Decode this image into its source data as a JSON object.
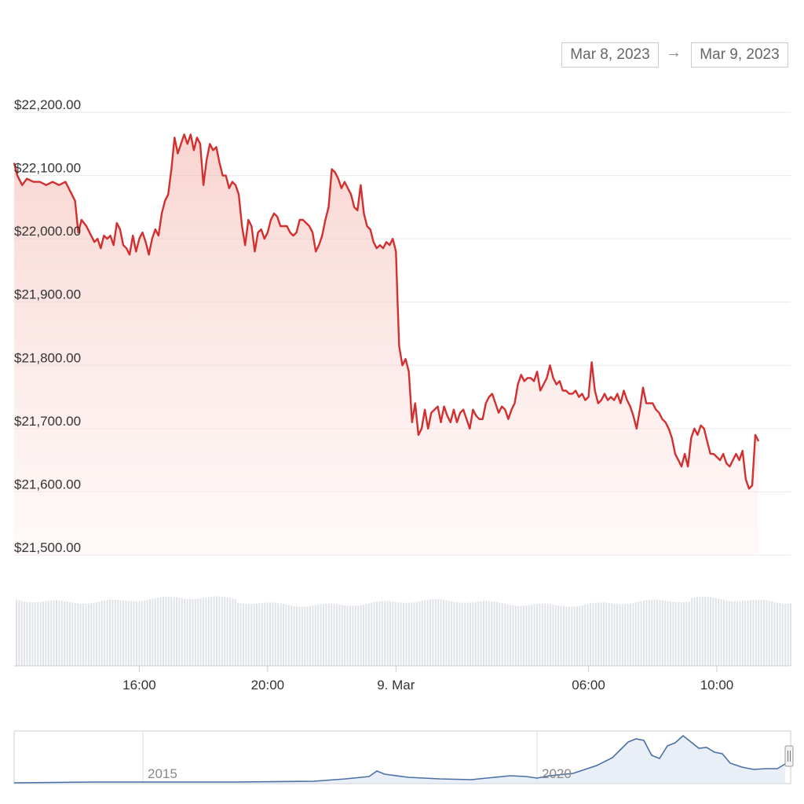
{
  "date_range": {
    "from": "Mar 8, 2023",
    "arrow": "→",
    "to": "Mar 9, 2023"
  },
  "colors": {
    "price_line": "#d32f2f",
    "area_fill": "#f8d7d3",
    "volume_bar": "#dfe3e8",
    "navigator_line": "#4a6fa5",
    "grid": "#e9e9e9"
  },
  "chart_data": {
    "type": "area",
    "y_tick_labels": [
      "$21,500.00",
      "$21,600.00",
      "$21,700.00",
      "$21,800.00",
      "$21,900.00",
      "$22,000.00",
      "$22,100.00",
      "$22,200.00"
    ],
    "y_tick_values": [
      21500,
      21600,
      21700,
      21800,
      21900,
      22000,
      22100,
      22200
    ],
    "ylim": [
      21500,
      22200
    ],
    "x_tick_labels": [
      "16:00",
      "20:00",
      "9. Mar",
      "06:00",
      "10:00"
    ],
    "x_tick_hours": [
      16,
      20,
      24,
      30,
      34
    ],
    "x_range_hours": [
      12.1,
      36.3
    ],
    "grid": true,
    "series": [
      {
        "points": [
          [
            12.1,
            22120
          ],
          [
            12.2,
            22100
          ],
          [
            12.35,
            22085
          ],
          [
            12.5,
            22095
          ],
          [
            12.7,
            22090
          ],
          [
            12.9,
            22090
          ],
          [
            13.1,
            22085
          ],
          [
            13.3,
            22090
          ],
          [
            13.5,
            22085
          ],
          [
            13.7,
            22090
          ],
          [
            13.8,
            22080
          ],
          [
            14.0,
            22060
          ],
          [
            14.1,
            22010
          ],
          [
            14.2,
            22030
          ],
          [
            14.35,
            22020
          ],
          [
            14.5,
            22005
          ],
          [
            14.6,
            21995
          ],
          [
            14.7,
            22000
          ],
          [
            14.8,
            21985
          ],
          [
            14.9,
            22005
          ],
          [
            15.0,
            22000
          ],
          [
            15.1,
            22005
          ],
          [
            15.2,
            21990
          ],
          [
            15.3,
            22025
          ],
          [
            15.4,
            22015
          ],
          [
            15.5,
            21990
          ],
          [
            15.6,
            21985
          ],
          [
            15.7,
            21975
          ],
          [
            15.8,
            22005
          ],
          [
            15.9,
            21980
          ],
          [
            16.0,
            22000
          ],
          [
            16.1,
            22010
          ],
          [
            16.2,
            21995
          ],
          [
            16.3,
            21975
          ],
          [
            16.4,
            22000
          ],
          [
            16.5,
            22015
          ],
          [
            16.6,
            22005
          ],
          [
            16.7,
            22040
          ],
          [
            16.8,
            22060
          ],
          [
            16.9,
            22070
          ],
          [
            17.0,
            22110
          ],
          [
            17.1,
            22160
          ],
          [
            17.2,
            22135
          ],
          [
            17.3,
            22150
          ],
          [
            17.4,
            22165
          ],
          [
            17.5,
            22150
          ],
          [
            17.6,
            22165
          ],
          [
            17.7,
            22140
          ],
          [
            17.8,
            22160
          ],
          [
            17.9,
            22150
          ],
          [
            18.0,
            22085
          ],
          [
            18.1,
            22125
          ],
          [
            18.2,
            22150
          ],
          [
            18.3,
            22140
          ],
          [
            18.4,
            22145
          ],
          [
            18.5,
            22120
          ],
          [
            18.6,
            22100
          ],
          [
            18.7,
            22100
          ],
          [
            18.8,
            22080
          ],
          [
            18.9,
            22090
          ],
          [
            19.0,
            22085
          ],
          [
            19.1,
            22070
          ],
          [
            19.2,
            22020
          ],
          [
            19.3,
            21990
          ],
          [
            19.4,
            22030
          ],
          [
            19.5,
            22020
          ],
          [
            19.6,
            21980
          ],
          [
            19.7,
            22010
          ],
          [
            19.8,
            22015
          ],
          [
            19.9,
            22000
          ],
          [
            20.0,
            22010
          ],
          [
            20.1,
            22030
          ],
          [
            20.2,
            22040
          ],
          [
            20.3,
            22035
          ],
          [
            20.4,
            22020
          ],
          [
            20.5,
            22020
          ],
          [
            20.6,
            22020
          ],
          [
            20.7,
            22010
          ],
          [
            20.8,
            22005
          ],
          [
            20.9,
            22010
          ],
          [
            21.0,
            22030
          ],
          [
            21.1,
            22030
          ],
          [
            21.2,
            22025
          ],
          [
            21.3,
            22020
          ],
          [
            21.4,
            22010
          ],
          [
            21.5,
            21980
          ],
          [
            21.6,
            21990
          ],
          [
            21.7,
            22005
          ],
          [
            21.8,
            22030
          ],
          [
            21.9,
            22050
          ],
          [
            22.0,
            22110
          ],
          [
            22.1,
            22105
          ],
          [
            22.2,
            22095
          ],
          [
            22.3,
            22080
          ],
          [
            22.4,
            22090
          ],
          [
            22.5,
            22080
          ],
          [
            22.6,
            22070
          ],
          [
            22.7,
            22050
          ],
          [
            22.8,
            22045
          ],
          [
            22.9,
            22085
          ],
          [
            23.0,
            22040
          ],
          [
            23.1,
            22020
          ],
          [
            23.2,
            22015
          ],
          [
            23.3,
            21995
          ],
          [
            23.4,
            21985
          ],
          [
            23.5,
            21990
          ],
          [
            23.6,
            21985
          ],
          [
            23.7,
            21995
          ],
          [
            23.8,
            21990
          ],
          [
            23.9,
            22000
          ],
          [
            24.0,
            21980
          ],
          [
            24.05,
            21900
          ],
          [
            24.1,
            21830
          ],
          [
            24.2,
            21800
          ],
          [
            24.3,
            21810
          ],
          [
            24.4,
            21790
          ],
          [
            24.5,
            21710
          ],
          [
            24.6,
            21740
          ],
          [
            24.7,
            21690
          ],
          [
            24.8,
            21700
          ],
          [
            24.9,
            21730
          ],
          [
            25.0,
            21700
          ],
          [
            25.1,
            21725
          ],
          [
            25.2,
            21730
          ],
          [
            25.3,
            21735
          ],
          [
            25.4,
            21710
          ],
          [
            25.5,
            21735
          ],
          [
            25.6,
            21720
          ],
          [
            25.7,
            21710
          ],
          [
            25.8,
            21730
          ],
          [
            25.9,
            21710
          ],
          [
            26.0,
            21725
          ],
          [
            26.1,
            21730
          ],
          [
            26.2,
            21715
          ],
          [
            26.3,
            21700
          ],
          [
            26.4,
            21730
          ],
          [
            26.5,
            21720
          ],
          [
            26.6,
            21715
          ],
          [
            26.7,
            21715
          ],
          [
            26.8,
            21740
          ],
          [
            26.9,
            21750
          ],
          [
            27.0,
            21755
          ],
          [
            27.1,
            21740
          ],
          [
            27.2,
            21725
          ],
          [
            27.3,
            21735
          ],
          [
            27.4,
            21730
          ],
          [
            27.5,
            21715
          ],
          [
            27.6,
            21730
          ],
          [
            27.7,
            21740
          ],
          [
            27.8,
            21770
          ],
          [
            27.9,
            21785
          ],
          [
            28.0,
            21775
          ],
          [
            28.1,
            21780
          ],
          [
            28.2,
            21780
          ],
          [
            28.3,
            21775
          ],
          [
            28.4,
            21790
          ],
          [
            28.5,
            21760
          ],
          [
            28.6,
            21770
          ],
          [
            28.7,
            21780
          ],
          [
            28.8,
            21800
          ],
          [
            28.9,
            21780
          ],
          [
            29.0,
            21770
          ],
          [
            29.1,
            21775
          ],
          [
            29.2,
            21760
          ],
          [
            29.3,
            21760
          ],
          [
            29.4,
            21755
          ],
          [
            29.5,
            21755
          ],
          [
            29.6,
            21760
          ],
          [
            29.7,
            21750
          ],
          [
            29.8,
            21755
          ],
          [
            29.9,
            21745
          ],
          [
            30.0,
            21750
          ],
          [
            30.1,
            21805
          ],
          [
            30.2,
            21760
          ],
          [
            30.3,
            21740
          ],
          [
            30.4,
            21745
          ],
          [
            30.5,
            21755
          ],
          [
            30.6,
            21745
          ],
          [
            30.7,
            21750
          ],
          [
            30.8,
            21745
          ],
          [
            30.9,
            21755
          ],
          [
            31.0,
            21740
          ],
          [
            31.1,
            21760
          ],
          [
            31.2,
            21745
          ],
          [
            31.3,
            21735
          ],
          [
            31.4,
            21720
          ],
          [
            31.5,
            21700
          ],
          [
            31.6,
            21730
          ],
          [
            31.7,
            21765
          ],
          [
            31.8,
            21740
          ],
          [
            31.9,
            21740
          ],
          [
            32.0,
            21740
          ],
          [
            32.1,
            21730
          ],
          [
            32.2,
            21725
          ],
          [
            32.3,
            21715
          ],
          [
            32.4,
            21710
          ],
          [
            32.5,
            21700
          ],
          [
            32.6,
            21685
          ],
          [
            32.7,
            21660
          ],
          [
            32.8,
            21650
          ],
          [
            32.9,
            21640
          ],
          [
            33.0,
            21660
          ],
          [
            33.1,
            21640
          ],
          [
            33.2,
            21685
          ],
          [
            33.3,
            21700
          ],
          [
            33.4,
            21690
          ],
          [
            33.5,
            21705
          ],
          [
            33.6,
            21700
          ],
          [
            33.7,
            21680
          ],
          [
            33.8,
            21660
          ],
          [
            33.9,
            21660
          ],
          [
            34.0,
            21655
          ],
          [
            34.1,
            21650
          ],
          [
            34.2,
            21660
          ],
          [
            34.3,
            21645
          ],
          [
            34.4,
            21640
          ],
          [
            34.5,
            21650
          ],
          [
            34.6,
            21660
          ],
          [
            34.7,
            21650
          ],
          [
            34.8,
            21665
          ],
          [
            34.9,
            21620
          ],
          [
            35.0,
            21605
          ],
          [
            35.1,
            21610
          ],
          [
            35.2,
            21690
          ],
          [
            35.3,
            21680
          ]
        ]
      }
    ],
    "navigator": {
      "x_tick_labels": [
        "2015",
        "2020"
      ],
      "x_tick_years": [
        2015,
        2020
      ]
    }
  }
}
